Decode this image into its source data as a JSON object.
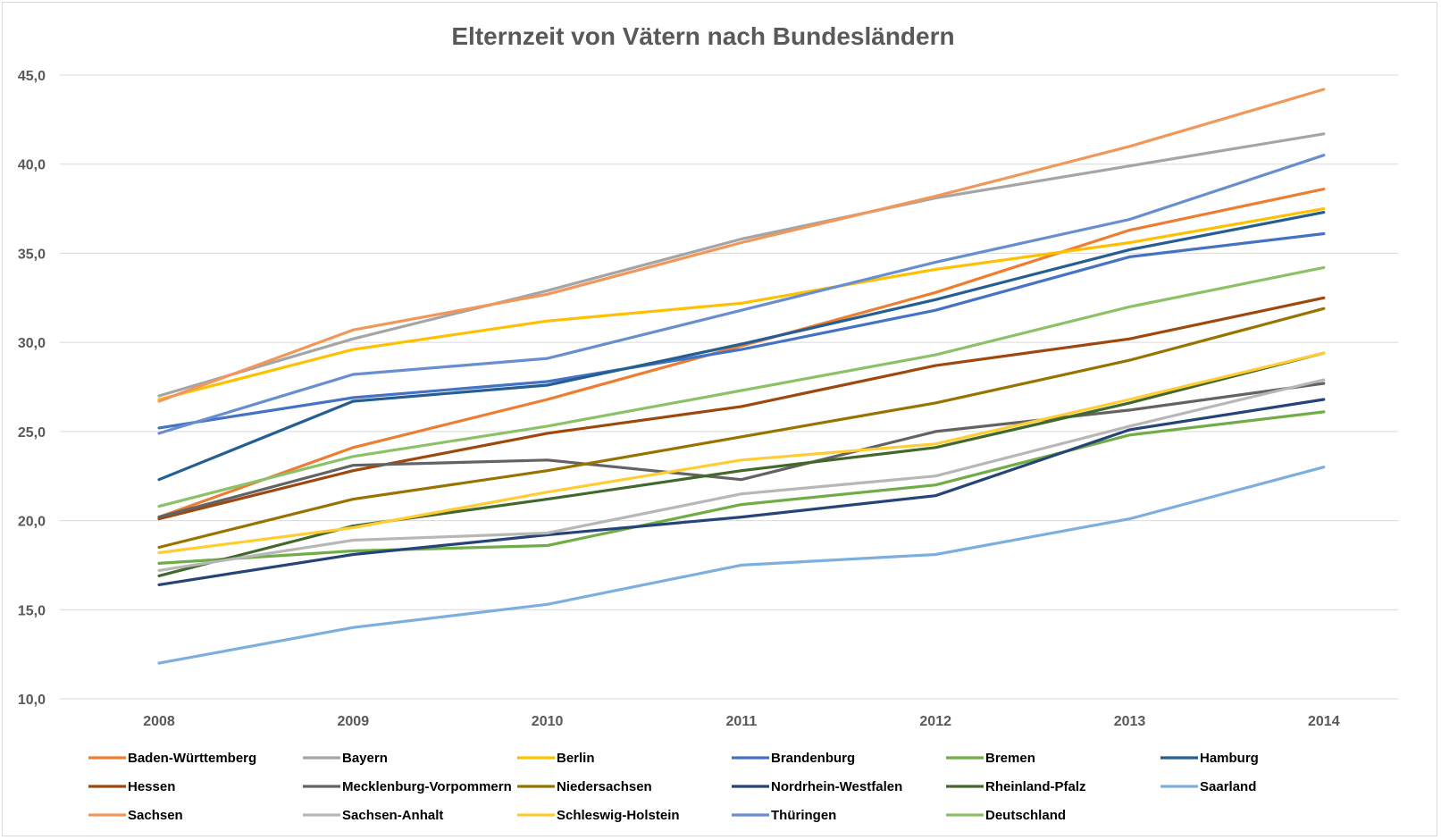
{
  "chart_data": {
    "type": "line",
    "title": "Elternzeit von Vätern nach Bundesländern",
    "xlabel": "",
    "ylabel": "",
    "x": [
      "2008",
      "2009",
      "2010",
      "2011",
      "2012",
      "2013",
      "2014"
    ],
    "y_ticks": [
      "10,0",
      "15,0",
      "20,0",
      "25,0",
      "30,0",
      "35,0",
      "40,0",
      "45,0"
    ],
    "ylim": [
      10,
      45
    ],
    "grid": true,
    "legend_position": "bottom",
    "series": [
      {
        "name": "Baden-Württemberg",
        "color": "#ED7D31",
        "values": [
          20.2,
          24.1,
          26.8,
          29.8,
          32.8,
          36.3,
          38.6
        ]
      },
      {
        "name": "Bayern",
        "color": "#A5A5A5",
        "values": [
          27.0,
          30.2,
          32.9,
          35.8,
          38.1,
          39.9,
          41.7
        ]
      },
      {
        "name": "Berlin",
        "color": "#FFC000",
        "values": [
          26.8,
          29.6,
          31.2,
          32.2,
          34.1,
          35.6,
          37.5
        ]
      },
      {
        "name": "Brandenburg",
        "color": "#4472C4",
        "values": [
          25.2,
          26.9,
          27.8,
          29.6,
          31.8,
          34.8,
          36.1
        ]
      },
      {
        "name": "Bremen",
        "color": "#70AD47",
        "values": [
          17.6,
          18.3,
          18.6,
          20.9,
          22.0,
          24.8,
          26.1
        ]
      },
      {
        "name": "Hamburg",
        "color": "#255E91",
        "values": [
          22.3,
          26.7,
          27.6,
          29.9,
          32.4,
          35.2,
          37.3
        ]
      },
      {
        "name": "Hessen",
        "color": "#9E480E",
        "values": [
          20.1,
          22.8,
          24.9,
          26.4,
          28.7,
          30.2,
          32.5
        ]
      },
      {
        "name": "Mecklenburg-Vorpommern",
        "color": "#636363",
        "values": [
          20.2,
          23.1,
          23.4,
          22.3,
          25.0,
          26.2,
          27.7
        ]
      },
      {
        "name": "Niedersachsen",
        "color": "#997300",
        "values": [
          18.5,
          21.2,
          22.8,
          24.7,
          26.6,
          29.0,
          31.9
        ]
      },
      {
        "name": "Nordrhein-Westfalen",
        "color": "#264478",
        "values": [
          16.4,
          18.1,
          19.2,
          20.2,
          21.4,
          25.1,
          26.8
        ]
      },
      {
        "name": "Rheinland-Pfalz",
        "color": "#43682B",
        "values": [
          16.9,
          19.7,
          21.2,
          22.8,
          24.1,
          26.6,
          29.4
        ]
      },
      {
        "name": "Saarland",
        "color": "#7CAFDD",
        "values": [
          12.0,
          14.0,
          15.3,
          17.5,
          18.1,
          20.1,
          23.0
        ]
      },
      {
        "name": "Sachsen",
        "color": "#F1975A",
        "values": [
          26.7,
          30.7,
          32.7,
          35.6,
          38.2,
          41.0,
          44.2
        ]
      },
      {
        "name": "Sachsen-Anhalt",
        "color": "#B7B7B7",
        "values": [
          17.2,
          18.9,
          19.3,
          21.5,
          22.5,
          25.3,
          27.9
        ]
      },
      {
        "name": "Schleswig-Holstein",
        "color": "#FFCD33",
        "values": [
          18.2,
          19.6,
          21.6,
          23.4,
          24.3,
          26.8,
          29.4
        ]
      },
      {
        "name": "Thüringen",
        "color": "#698ED0",
        "values": [
          24.9,
          28.2,
          29.1,
          31.8,
          34.5,
          36.9,
          40.5
        ]
      },
      {
        "name": "Deutschland",
        "color": "#8CC168",
        "values": [
          20.8,
          23.6,
          25.3,
          27.3,
          29.3,
          32.0,
          34.2
        ]
      }
    ]
  }
}
